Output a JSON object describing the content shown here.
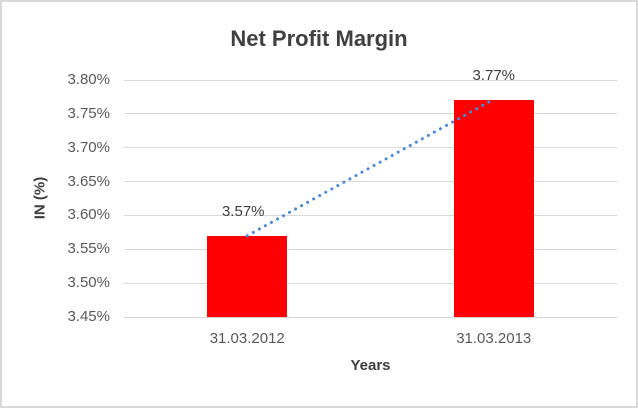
{
  "chart_data": {
    "type": "bar",
    "title": "Net Profit Margin",
    "xlabel": "Years",
    "ylabel": "IN (%)",
    "categories": [
      "31.03.2012",
      "31.03.2013"
    ],
    "series": [
      {
        "name": "Net Profit Margin",
        "values": [
          3.57,
          3.77
        ]
      }
    ],
    "data_labels": [
      "3.57%",
      "3.77%"
    ],
    "ylim": [
      3.45,
      3.8
    ],
    "ytick_step": 0.05,
    "ytick_labels": [
      "3.45%",
      "3.50%",
      "3.55%",
      "3.60%",
      "3.65%",
      "3.70%",
      "3.75%",
      "3.80%"
    ],
    "grid": true,
    "legend": "none",
    "trendline": {
      "type": "linear",
      "style": "dotted",
      "color": "#4a89d5"
    }
  },
  "colors": {
    "bar_fill": "#ff0000",
    "gridline": "#d9d9d9",
    "axis_line": "#d4d4d4",
    "title_text": "#404040",
    "tick_text": "#595959",
    "data_label_text": "#404040",
    "frame_border": "#d9d9d9",
    "background": "#ffffff"
  }
}
